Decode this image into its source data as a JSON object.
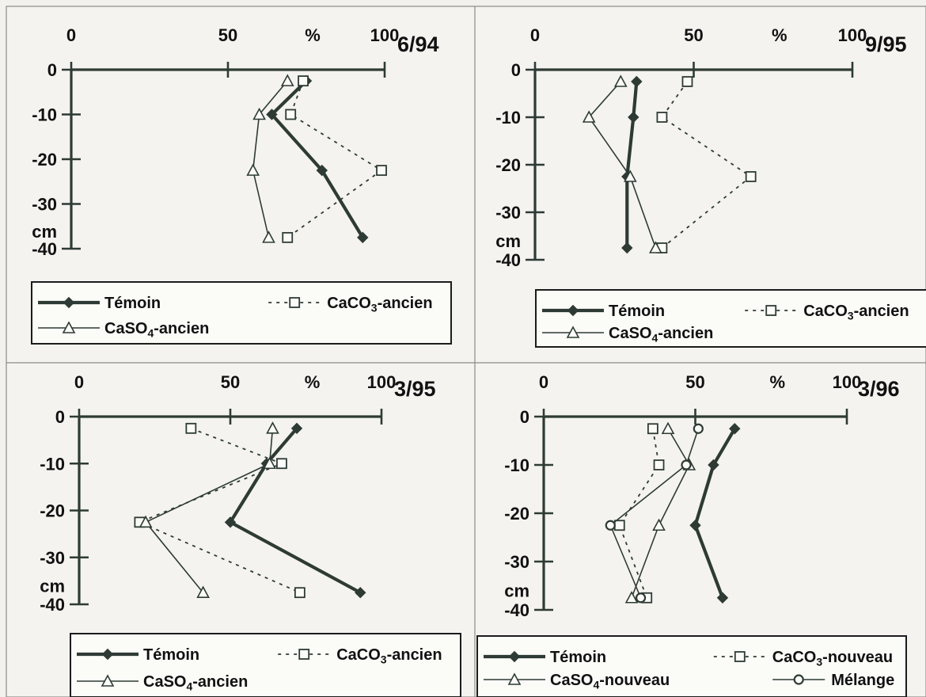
{
  "chart_data": [
    {
      "type": "line",
      "title": "6/94",
      "x_unit": "%",
      "y_unit": "cm",
      "xlim": [
        0,
        100
      ],
      "ylim": [
        -40,
        0
      ],
      "x_ticks": [
        "0",
        "50",
        "100"
      ],
      "y_ticks": [
        "0",
        "-10",
        "-20",
        "-30",
        "-40"
      ],
      "series": [
        {
          "name": "Témoin",
          "style": "thick-diamond",
          "points": [
            {
              "x": 75,
              "y": -2.5
            },
            {
              "x": 64,
              "y": -10
            },
            {
              "x": 80,
              "y": -22.5
            },
            {
              "x": 93,
              "y": -37.5
            }
          ]
        },
        {
          "name": "CaCO₃-ancien",
          "style": "dotted-square",
          "points": [
            {
              "x": 74,
              "y": -2.5
            },
            {
              "x": 70,
              "y": -10
            },
            {
              "x": 99,
              "y": -22.5
            },
            {
              "x": 69,
              "y": -37.5
            }
          ]
        },
        {
          "name": "CaSO₄-ancien",
          "style": "thin-triangle",
          "points": [
            {
              "x": 69,
              "y": -2.5
            },
            {
              "x": 60,
              "y": -10
            },
            {
              "x": 58,
              "y": -22.5
            },
            {
              "x": 63,
              "y": -37.5
            }
          ]
        }
      ],
      "legend_rows": [
        [
          "Témoin",
          "CaCO₃-ancien"
        ],
        [
          "CaSO₄-ancien"
        ]
      ]
    },
    {
      "type": "line",
      "title": "9/95",
      "x_unit": "%",
      "y_unit": "cm",
      "xlim": [
        0,
        100
      ],
      "ylim": [
        -40,
        0
      ],
      "x_ticks": [
        "0",
        "50",
        "100"
      ],
      "y_ticks": [
        "0",
        "-10",
        "-20",
        "-30",
        "-40"
      ],
      "series": [
        {
          "name": "Témoin",
          "style": "thick-diamond",
          "points": [
            {
              "x": 32,
              "y": -2.5
            },
            {
              "x": 31,
              "y": -10
            },
            {
              "x": 29,
              "y": -22.5
            },
            {
              "x": 29,
              "y": -37.5
            }
          ]
        },
        {
          "name": "CaCO₃-ancien",
          "style": "dotted-square",
          "points": [
            {
              "x": 48,
              "y": -2.5
            },
            {
              "x": 40,
              "y": -10
            },
            {
              "x": 68,
              "y": -22.5
            },
            {
              "x": 40,
              "y": -37.5
            }
          ]
        },
        {
          "name": "CaSO₄-ancien",
          "style": "thin-triangle",
          "points": [
            {
              "x": 27,
              "y": -2.5
            },
            {
              "x": 17,
              "y": -10
            },
            {
              "x": 30,
              "y": -22.5
            },
            {
              "x": 38,
              "y": -37.5
            }
          ]
        }
      ],
      "legend_rows": [
        [
          "Témoin",
          "CaCO₃-ancien"
        ],
        [
          "CaSO₄-ancien"
        ]
      ]
    },
    {
      "type": "line",
      "title": "3/95",
      "x_unit": "%",
      "y_unit": "cm",
      "xlim": [
        0,
        100
      ],
      "ylim": [
        -40,
        0
      ],
      "x_ticks": [
        "0",
        "50",
        "100"
      ],
      "y_ticks": [
        "0",
        "-10",
        "-20",
        "-30",
        "-40"
      ],
      "series": [
        {
          "name": "Témoin",
          "style": "thick-diamond",
          "points": [
            {
              "x": 72,
              "y": -2.5
            },
            {
              "x": 62,
              "y": -10
            },
            {
              "x": 50,
              "y": -22.5
            },
            {
              "x": 93,
              "y": -37.5
            }
          ]
        },
        {
          "name": "CaCO₃-ancien",
          "style": "dotted-square",
          "points": [
            {
              "x": 37,
              "y": -2.5
            },
            {
              "x": 67,
              "y": -10
            },
            {
              "x": 20,
              "y": -22.5
            },
            {
              "x": 73,
              "y": -37.5
            }
          ]
        },
        {
          "name": "CaSO₄-ancien",
          "style": "thin-triangle",
          "points": [
            {
              "x": 64,
              "y": -2.5
            },
            {
              "x": 63,
              "y": -10
            },
            {
              "x": 22,
              "y": -22.5
            },
            {
              "x": 41,
              "y": -37.5
            }
          ]
        }
      ],
      "legend_rows": [
        [
          "Témoin",
          "CaCO₃-ancien"
        ],
        [
          "CaSO₄-ancien"
        ]
      ]
    },
    {
      "type": "line",
      "title": "3/96",
      "x_unit": "%",
      "y_unit": "cm",
      "xlim": [
        0,
        100
      ],
      "ylim": [
        -40,
        0
      ],
      "x_ticks": [
        "0",
        "50",
        "100"
      ],
      "y_ticks": [
        "0",
        "-10",
        "-20",
        "-30",
        "-40"
      ],
      "series": [
        {
          "name": "Témoin",
          "style": "thick-diamond",
          "points": [
            {
              "x": 63,
              "y": -2.5
            },
            {
              "x": 56,
              "y": -10
            },
            {
              "x": 50,
              "y": -22.5
            },
            {
              "x": 59,
              "y": -37.5
            }
          ]
        },
        {
          "name": "CaCO₃-nouveau",
          "style": "dotted-square",
          "points": [
            {
              "x": 36,
              "y": -2.5
            },
            {
              "x": 38,
              "y": -10
            },
            {
              "x": 25,
              "y": -22.5
            },
            {
              "x": 34,
              "y": -37.5
            }
          ]
        },
        {
          "name": "CaSO₄-nouveau",
          "style": "thin-triangle",
          "points": [
            {
              "x": 41,
              "y": -2.5
            },
            {
              "x": 48,
              "y": -10
            },
            {
              "x": 38,
              "y": -22.5
            },
            {
              "x": 29,
              "y": -37.5
            }
          ]
        },
        {
          "name": "Mélange",
          "style": "thin-circle",
          "points": [
            {
              "x": 51,
              "y": -2.5
            },
            {
              "x": 47,
              "y": -10
            },
            {
              "x": 22,
              "y": -22.5
            },
            {
              "x": 32,
              "y": -37.5
            }
          ]
        }
      ],
      "legend_rows": [
        [
          "Témoin",
          "CaCO₃-nouveau"
        ],
        [
          "CaSO₄-nouveau",
          "Mélange"
        ]
      ]
    }
  ]
}
